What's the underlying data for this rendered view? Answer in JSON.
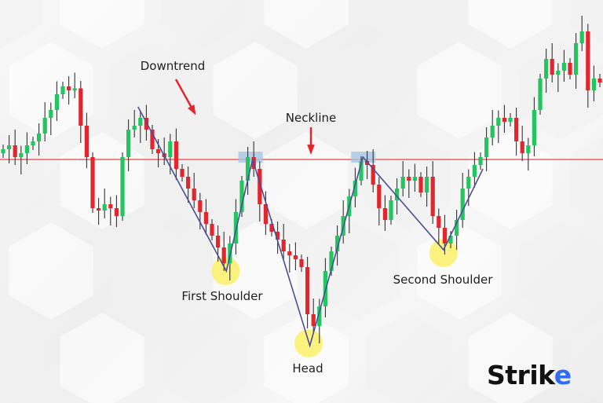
{
  "chart_data": {
    "type": "candlestick",
    "title": "",
    "xlabel": "",
    "ylabel": "",
    "ylim": [
      0,
      100
    ],
    "grid": false,
    "close": [
      62,
      63,
      60,
      61,
      63,
      64,
      66,
      70,
      72,
      76,
      78,
      77,
      77.5,
      68,
      60,
      47,
      46.4,
      48,
      47,
      45,
      60,
      67,
      68,
      70,
      67,
      62,
      61,
      60,
      64,
      57,
      55,
      52,
      49,
      46,
      43,
      40,
      37,
      33,
      38,
      46,
      54,
      60,
      57,
      48,
      43,
      41,
      39,
      36,
      35,
      34,
      32,
      20,
      17,
      22,
      31,
      36,
      40,
      45,
      50,
      54,
      59,
      58,
      53,
      47,
      44,
      49,
      52,
      55,
      54,
      55,
      51,
      55,
      45,
      42,
      38,
      40,
      44,
      52,
      55,
      58,
      60,
      65,
      68,
      70,
      69,
      70,
      64,
      61,
      63,
      72,
      80,
      85,
      81,
      82,
      84,
      81,
      89,
      92,
      77,
      80,
      79
    ],
    "first_open": 61,
    "colors": {
      "up": "#22c55e",
      "down": "#e3262d",
      "wick": "#333333",
      "neckline": "#e0464a",
      "pattern": "#4a4f96",
      "highlight": "#fbf06a",
      "peak_box": "#a8c6e4",
      "arrow": "#e3262d"
    },
    "neckline": 59.4,
    "pattern_line": [
      [
        22.6,
        72.8
      ],
      [
        37.4,
        31
      ],
      [
        41.8,
        59.4
      ],
      [
        51.4,
        12
      ],
      [
        60.3,
        60
      ],
      [
        73.8,
        36.4
      ],
      [
        80.4,
        57
      ]
    ],
    "highlights": [
      [
        37.3,
        31
      ],
      [
        51.2,
        12.6
      ],
      [
        73.8,
        35.6
      ]
    ],
    "peak_boxes": [
      [
        41.4,
        60
      ],
      [
        60.3,
        60
      ]
    ],
    "annotations": {
      "downtrend": "Downtrend",
      "neckline": "Neckline",
      "first_shoulder": "First Shoulder",
      "head": "Head",
      "second_shoulder": "Second Shoulder"
    }
  },
  "logo": {
    "text_main": "Stri",
    "text_k": "k",
    "text_accent": "e"
  }
}
